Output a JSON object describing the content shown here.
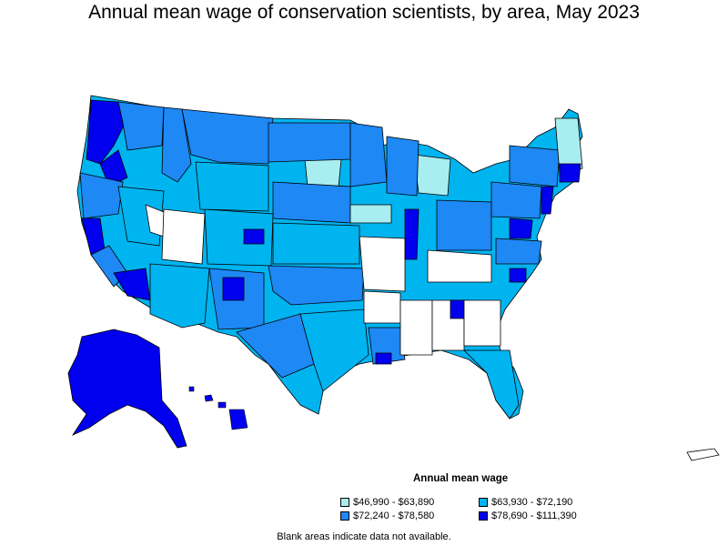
{
  "title": "Annual mean wage of conservation scientists, by area, May 2023",
  "legend": {
    "title": "Annual mean wage",
    "items": [
      {
        "label": "$46,990 - $63,890",
        "color": "#a8eef0"
      },
      {
        "label": "$63,930 - $72,190",
        "color": "#00b4f0"
      },
      {
        "label": "$72,240 - $78,580",
        "color": "#1e88f5"
      },
      {
        "label": "$78,690 - $111,390",
        "color": "#0000ee"
      }
    ]
  },
  "note": "Blank areas indicate data not available.",
  "colors": {
    "outline": "#000000",
    "blank": "#ffffff"
  }
}
